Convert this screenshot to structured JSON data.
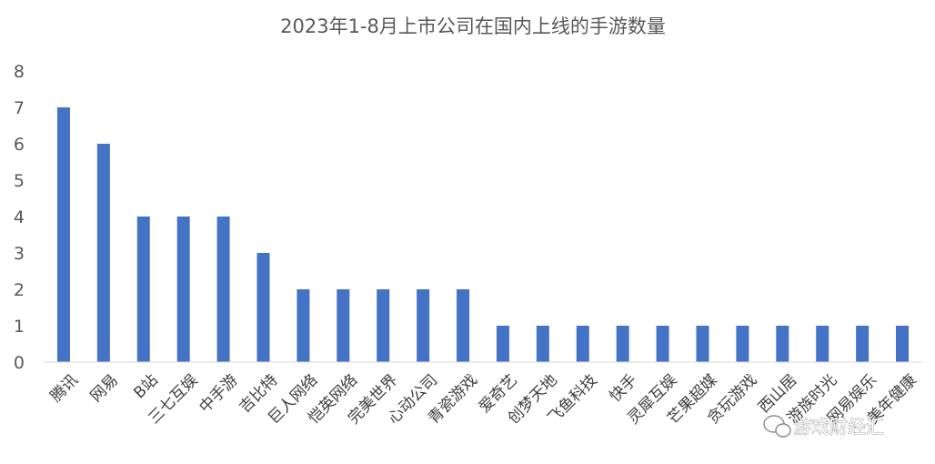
{
  "chart_data": {
    "type": "bar",
    "title": "2023年1-8月上市公司在国内上线的手游数量",
    "categories": [
      "腾讯",
      "网易",
      "B站",
      "三七互娱",
      "中手游",
      "吉比特",
      "巨人网络",
      "恺英网络",
      "完美世界",
      "心动公司",
      "青瓷游戏",
      "爱奇艺",
      "创梦天地",
      "飞鱼科技",
      "快手",
      "灵犀互娱",
      "芒果超媒",
      "贪玩游戏",
      "西山居",
      "游族时光",
      "网易娱乐",
      "美年健康"
    ],
    "values": [
      7,
      6,
      4,
      4,
      4,
      3,
      2,
      2,
      2,
      2,
      2,
      1,
      1,
      1,
      1,
      1,
      1,
      1,
      1,
      1,
      1,
      1
    ],
    "yticks": [
      "0",
      "1",
      "2",
      "3",
      "4",
      "5",
      "6",
      "7",
      "8"
    ],
    "ylim": [
      0,
      8
    ],
    "grid": false,
    "bar_color": "#4472C4"
  },
  "watermark": {
    "text": "游戏财经汇",
    "icon": "wechat-icon"
  }
}
